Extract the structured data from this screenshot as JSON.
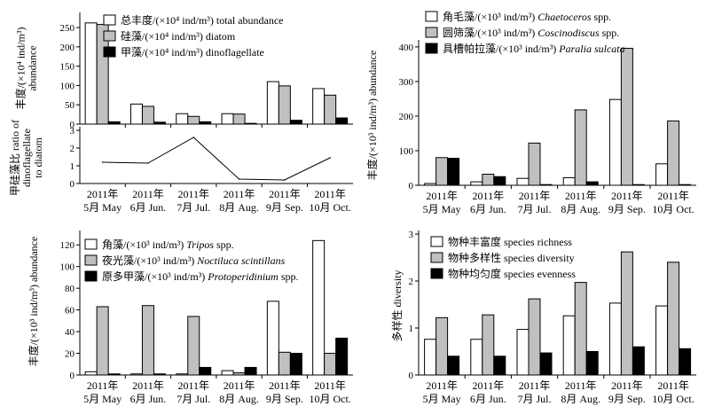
{
  "chart_data": [
    {
      "id": "a",
      "type": "bar",
      "categories": [
        {
          "line1": "2011年",
          "line2": "5月 May"
        },
        {
          "line1": "2011年",
          "line2": "6月 Jun."
        },
        {
          "line1": "2011年",
          "line2": "7月 Jul."
        },
        {
          "line1": "2011年",
          "line2": "8月 Aug."
        },
        {
          "line1": "2011年",
          "line2": "9月 Sep."
        },
        {
          "line1": "2011年",
          "line2": "10月 Oct."
        }
      ],
      "ylabel_lines": [
        "丰度/(×10⁴ ind/m³)",
        "abundance"
      ],
      "ylim": [
        0,
        280
      ],
      "yticks": [
        0,
        50,
        100,
        150,
        200,
        250
      ],
      "legend_position": "top-right",
      "series": [
        {
          "name": "总丰度/(×10⁴ ind/m³) total abundance",
          "color": "#ffffff",
          "values": [
            262,
            52,
            27,
            27,
            110,
            92
          ]
        },
        {
          "name": "硅藻/(×10⁴ ind/m³) diatom",
          "color": "#c0c0c0",
          "values": [
            258,
            46,
            20,
            26,
            99,
            75
          ]
        },
        {
          "name": "甲藻/(×10⁴ ind/m³) dinoflagellate",
          "color": "#000000",
          "values": [
            6,
            5,
            6,
            2,
            10,
            16
          ]
        }
      ]
    },
    {
      "id": "a2",
      "type": "line",
      "categories": [
        {
          "line1": "2011年",
          "line2": "5月 May"
        },
        {
          "line1": "2011年",
          "line2": "6月 Jun."
        },
        {
          "line1": "2011年",
          "line2": "7月 Jul."
        },
        {
          "line1": "2011年",
          "line2": "8月 Aug."
        },
        {
          "line1": "2011年",
          "line2": "9月 Sep."
        },
        {
          "line1": "2011年",
          "line2": "10月 Oct."
        }
      ],
      "ylabel_lines": [
        "甲硅藻比 ratio of",
        "dinoflagellate",
        "to diatom"
      ],
      "ylim": [
        0,
        3
      ],
      "yticks": [
        0,
        1,
        2,
        3
      ],
      "series": [
        {
          "name": "",
          "values": [
            1.2,
            1.15,
            2.6,
            0.25,
            0.2,
            1.45
          ]
        }
      ]
    },
    {
      "id": "b",
      "type": "bar",
      "categories": [
        {
          "line1": "2011年",
          "line2": "5月 May"
        },
        {
          "line1": "2011年",
          "line2": "6月 Jun."
        },
        {
          "line1": "2011年",
          "line2": "7月 Jul."
        },
        {
          "line1": "2011年",
          "line2": "8月 Aug."
        },
        {
          "line1": "2011年",
          "line2": "9月 Sep."
        },
        {
          "line1": "2011年",
          "line2": "10月 Oct."
        }
      ],
      "ylabel_lines": [
        "丰度/(×10³ ind/m³) abundance"
      ],
      "ylim": [
        0,
        410
      ],
      "yticks": [
        0,
        100,
        200,
        300,
        400
      ],
      "legend_position": "top-left",
      "series": [
        {
          "name": "角毛藻/(×10³ ind/m³) Chaetoceros spp.",
          "name_main": "角毛藻/(×10³ ind/m³) ",
          "name_italic": "Chaetoceros",
          "name_tail": " spp.",
          "color": "#ffffff",
          "values": [
            5,
            10,
            20,
            22,
            248,
            62
          ]
        },
        {
          "name": "圆筛藻/(×10³ ind/m³) Coscinodiscus spp.",
          "name_main": "圆筛藻/(×10³ ind/m³) ",
          "name_italic": "Coscinodiscus",
          "name_tail": " spp.",
          "color": "#c0c0c0",
          "values": [
            80,
            32,
            122,
            218,
            396,
            186
          ]
        },
        {
          "name": "具槽帕拉藻/(×10³ ind/m³) Paralia sulcata",
          "name_main": "具槽帕拉藻/(×10³ ind/m³) ",
          "name_italic": "Paralia sulcata",
          "name_tail": "",
          "color": "#000000",
          "values": [
            78,
            25,
            2,
            10,
            2,
            2
          ]
        }
      ]
    },
    {
      "id": "c",
      "type": "bar",
      "categories": [
        {
          "line1": "2011年",
          "line2": "5月 May"
        },
        {
          "line1": "2011年",
          "line2": "6月 Jun."
        },
        {
          "line1": "2011年",
          "line2": "7月 Jul."
        },
        {
          "line1": "2011年",
          "line2": "8月 Aug."
        },
        {
          "line1": "2011年",
          "line2": "9月 Sep."
        },
        {
          "line1": "2011年",
          "line2": "10月 Oct."
        }
      ],
      "ylabel_lines": [
        "丰度/(×10³ ind/m³) abundance"
      ],
      "ylim": [
        0,
        130
      ],
      "yticks": [
        0,
        20,
        40,
        60,
        80,
        100,
        120
      ],
      "legend_position": "top-left",
      "series": [
        {
          "name": "角藻/(×10³ ind/m³) Tripos spp.",
          "name_main": "角藻/(×10³ ind/m³) ",
          "name_italic": "Tripos",
          "name_tail": " spp.",
          "color": "#ffffff",
          "values": [
            3,
            1,
            1,
            4,
            68,
            124
          ]
        },
        {
          "name": "夜光藻/(×10³ ind/m³) Noctiluca scintillans",
          "name_main": "夜光藻/(×10³ ind/m³) ",
          "name_italic": "Noctiluca scintillans",
          "name_tail": "",
          "color": "#c0c0c0",
          "values": [
            63,
            64,
            54,
            2,
            21,
            20
          ]
        },
        {
          "name": "原多甲藻/(×10³ ind/m³) Protoperidinium spp.",
          "name_main": "原多甲藻/(×10³ ind/m³) ",
          "name_italic": "Protoperidinium",
          "name_tail": " spp.",
          "color": "#000000",
          "values": [
            1,
            1,
            7,
            7,
            20,
            34
          ]
        }
      ]
    },
    {
      "id": "d",
      "type": "bar",
      "categories": [
        {
          "line1": "2011年",
          "line2": "5月 May"
        },
        {
          "line1": "2011年",
          "line2": "6月 Jun."
        },
        {
          "line1": "2011年",
          "line2": "7月 Jul."
        },
        {
          "line1": "2011年",
          "line2": "8月 Aug."
        },
        {
          "line1": "2011年",
          "line2": "9月 Sep."
        },
        {
          "line1": "2011年",
          "line2": "10月 Oct."
        }
      ],
      "ylabel_lines": [
        "多样性 diversity"
      ],
      "ylim": [
        0,
        3
      ],
      "yticks": [
        0,
        1,
        2,
        3
      ],
      "legend_position": "top-left",
      "series": [
        {
          "name": "物种丰富度 species richness",
          "color": "#ffffff",
          "values": [
            0.76,
            0.76,
            0.97,
            1.26,
            1.53,
            1.47
          ]
        },
        {
          "name": "物种多样性 species diversity",
          "color": "#c0c0c0",
          "values": [
            1.22,
            1.28,
            1.62,
            1.97,
            2.62,
            2.4
          ]
        },
        {
          "name": "物种均匀度 species evenness",
          "color": "#000000",
          "values": [
            0.4,
            0.4,
            0.47,
            0.5,
            0.6,
            0.56
          ]
        }
      ]
    }
  ]
}
